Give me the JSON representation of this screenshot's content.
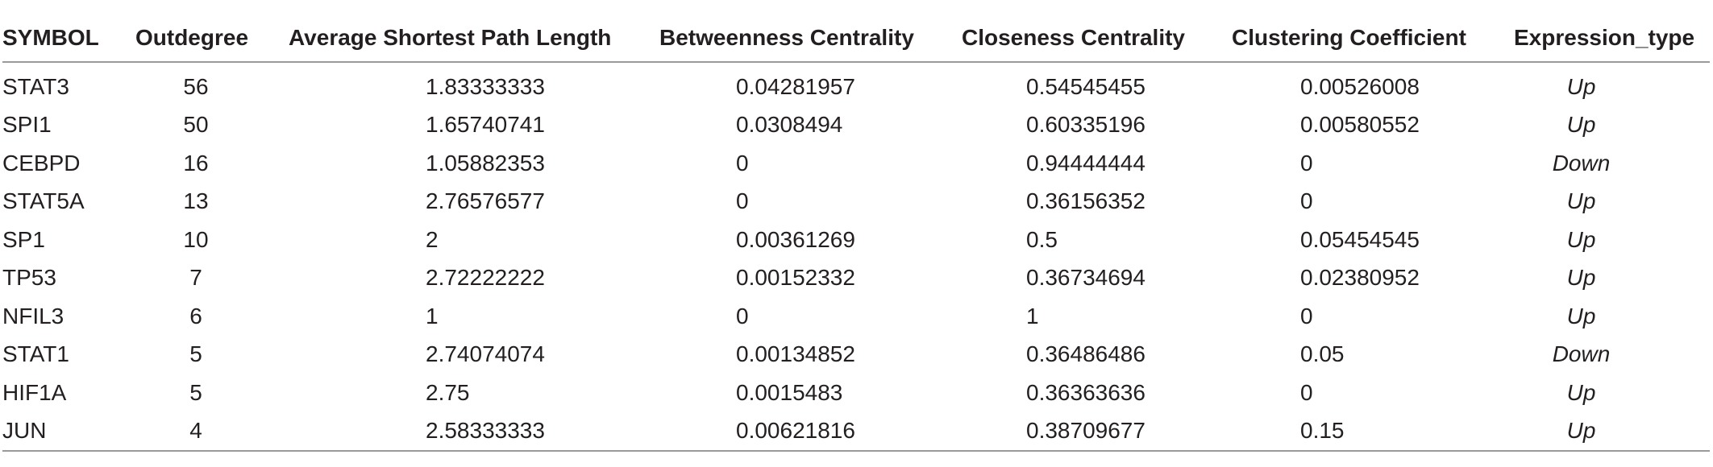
{
  "table": {
    "headers": [
      "SYMBOL",
      "Outdegree",
      "Average Shortest Path Length",
      "Betweenness Centrality",
      "Closeness Centrality",
      "Clustering Coefficient",
      "Expression_type"
    ],
    "rows": [
      [
        "STAT3",
        "56",
        "1.83333333",
        "0.04281957",
        "0.54545455",
        "0.00526008",
        "Up"
      ],
      [
        "SPI1",
        "50",
        "1.65740741",
        "0.0308494",
        "0.60335196",
        "0.00580552",
        "Up"
      ],
      [
        "CEBPD",
        "16",
        "1.05882353",
        "0",
        "0.94444444",
        "0",
        "Down"
      ],
      [
        "STAT5A",
        "13",
        "2.76576577",
        "0",
        "0.36156352",
        "0",
        "Up"
      ],
      [
        "SP1",
        "10",
        "2",
        "0.00361269",
        "0.5",
        "0.05454545",
        "Up"
      ],
      [
        "TP53",
        "7",
        "2.72222222",
        "0.00152332",
        "0.36734694",
        "0.02380952",
        "Up"
      ],
      [
        "NFIL3",
        "6",
        "1",
        "0",
        "1",
        "0",
        "Up"
      ],
      [
        "STAT1",
        "5",
        "2.74074074",
        "0.00134852",
        "0.36486486",
        "0.05",
        "Down"
      ],
      [
        "HIF1A",
        "5",
        "2.75",
        "0.0015483",
        "0.36363636",
        "0",
        "Up"
      ],
      [
        "JUN",
        "4",
        "2.58333333",
        "0.00621816",
        "0.38709677",
        "0.15",
        "Up"
      ]
    ]
  }
}
